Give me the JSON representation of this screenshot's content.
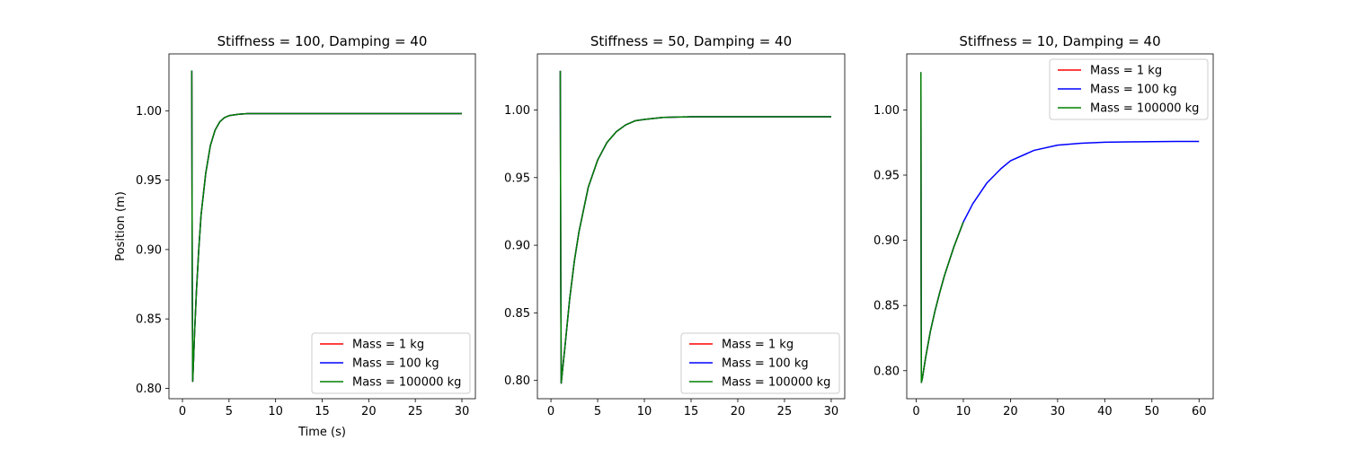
{
  "chart_data": [
    {
      "type": "line",
      "title": "Stiffness = 100, Damping = 40",
      "xlabel": "Time (s)",
      "ylabel": "Position (m)",
      "xlim": [
        -1.45,
        31.45
      ],
      "ylim": [
        0.7925,
        1.041
      ],
      "xticks": [
        0,
        5,
        10,
        15,
        20,
        25,
        30
      ],
      "xtick_labels": [
        "0",
        "5",
        "10",
        "15",
        "20",
        "25",
        "30"
      ],
      "yticks": [
        0.8,
        0.85,
        0.9,
        0.95,
        1.0
      ],
      "ytick_labels": [
        "0.80",
        "0.85",
        "0.90",
        "0.95",
        "1.00"
      ],
      "legend_position": "lower-right",
      "series": [
        {
          "name": "Mass = 1 kg",
          "color": "#ff0000",
          "x": [
            1.0,
            1.05,
            1.1,
            1.2,
            1.3,
            1.5,
            1.75,
            2.0,
            2.5,
            3.0,
            3.5,
            4.0,
            4.5,
            5.0,
            6.0,
            7.0,
            8.0,
            10.0,
            15.0,
            20.0,
            30.0
          ],
          "y": [
            1.029,
            0.88,
            0.805,
            0.822,
            0.84,
            0.87,
            0.9,
            0.925,
            0.955,
            0.975,
            0.986,
            0.992,
            0.995,
            0.9965,
            0.9975,
            0.998,
            0.998,
            0.998,
            0.998,
            0.998,
            0.998
          ]
        },
        {
          "name": "Mass = 100 kg",
          "color": "#0000ff",
          "x": [
            1.0,
            1.05,
            1.1,
            1.2,
            1.3,
            1.5,
            1.75,
            2.0,
            2.5,
            3.0,
            3.5,
            4.0,
            4.5,
            5.0,
            6.0,
            7.0,
            8.0,
            10.0,
            15.0,
            20.0,
            30.0
          ],
          "y": [
            1.029,
            0.88,
            0.805,
            0.822,
            0.84,
            0.87,
            0.9,
            0.925,
            0.955,
            0.975,
            0.986,
            0.992,
            0.995,
            0.9965,
            0.9975,
            0.998,
            0.998,
            0.998,
            0.998,
            0.998,
            0.998
          ]
        },
        {
          "name": "Mass = 100000 kg",
          "color": "#008000",
          "x": [
            1.0,
            1.05,
            1.1,
            1.2,
            1.3,
            1.5,
            1.75,
            2.0,
            2.5,
            3.0,
            3.5,
            4.0,
            4.5,
            5.0,
            6.0,
            7.0,
            8.0,
            10.0,
            15.0,
            20.0,
            30.0
          ],
          "y": [
            1.029,
            0.88,
            0.805,
            0.822,
            0.84,
            0.87,
            0.9,
            0.925,
            0.955,
            0.975,
            0.986,
            0.992,
            0.995,
            0.9965,
            0.9975,
            0.998,
            0.998,
            0.998,
            0.998,
            0.998,
            0.998
          ]
        }
      ]
    },
    {
      "type": "line",
      "title": "Stiffness = 50, Damping = 40",
      "xlabel": "",
      "ylabel": "",
      "xlim": [
        -1.45,
        31.45
      ],
      "ylim": [
        0.7865,
        1.0415
      ],
      "xticks": [
        0,
        5,
        10,
        15,
        20,
        25,
        30
      ],
      "xtick_labels": [
        "0",
        "5",
        "10",
        "15",
        "20",
        "25",
        "30"
      ],
      "yticks": [
        0.8,
        0.85,
        0.9,
        0.95,
        1.0
      ],
      "ytick_labels": [
        "0.80",
        "0.85",
        "0.90",
        "0.95",
        "1.00"
      ],
      "legend_position": "lower-right",
      "series": [
        {
          "name": "Mass = 1 kg",
          "color": "#ff0000",
          "x": [
            1.0,
            1.05,
            1.1,
            1.2,
            1.5,
            2.0,
            2.5,
            3.0,
            4.0,
            5.0,
            6.0,
            7.0,
            8.0,
            9.0,
            10.0,
            12.0,
            15.0,
            20.0,
            25.0,
            30.0
          ],
          "y": [
            1.029,
            0.88,
            0.798,
            0.805,
            0.825,
            0.86,
            0.888,
            0.91,
            0.943,
            0.963,
            0.976,
            0.984,
            0.989,
            0.992,
            0.993,
            0.9945,
            0.995,
            0.995,
            0.995,
            0.995
          ]
        },
        {
          "name": "Mass = 100 kg",
          "color": "#0000ff",
          "x": [
            1.0,
            1.05,
            1.1,
            1.2,
            1.5,
            2.0,
            2.5,
            3.0,
            4.0,
            5.0,
            6.0,
            7.0,
            8.0,
            9.0,
            10.0,
            12.0,
            15.0,
            20.0,
            25.0,
            30.0
          ],
          "y": [
            1.029,
            0.88,
            0.798,
            0.805,
            0.825,
            0.86,
            0.888,
            0.91,
            0.943,
            0.963,
            0.976,
            0.984,
            0.989,
            0.992,
            0.993,
            0.9945,
            0.995,
            0.995,
            0.995,
            0.995
          ]
        },
        {
          "name": "Mass = 100000 kg",
          "color": "#008000",
          "x": [
            1.0,
            1.05,
            1.1,
            1.2,
            1.5,
            2.0,
            2.5,
            3.0,
            4.0,
            5.0,
            6.0,
            7.0,
            8.0,
            9.0,
            10.0,
            12.0,
            15.0,
            20.0,
            25.0,
            30.0
          ],
          "y": [
            1.029,
            0.88,
            0.798,
            0.805,
            0.825,
            0.86,
            0.888,
            0.91,
            0.943,
            0.963,
            0.976,
            0.984,
            0.989,
            0.992,
            0.993,
            0.9945,
            0.995,
            0.995,
            0.995,
            0.995
          ]
        }
      ]
    },
    {
      "type": "line",
      "title": "Stiffness = 10, Damping = 40",
      "xlabel": "",
      "ylabel": "",
      "xlim": [
        -2.0,
        63.0
      ],
      "ylim": [
        0.7785,
        1.043
      ],
      "xticks": [
        0,
        10,
        20,
        30,
        40,
        50,
        60
      ],
      "xtick_labels": [
        "0",
        "10",
        "20",
        "30",
        "40",
        "50",
        "60"
      ],
      "yticks": [
        0.8,
        0.85,
        0.9,
        0.95,
        1.0
      ],
      "ytick_labels": [
        "0.80",
        "0.85",
        "0.90",
        "0.95",
        "1.00"
      ],
      "legend_position": "top-right",
      "series": [
        {
          "name": "Mass = 1 kg",
          "color": "#ff0000",
          "x": [
            1.0,
            1.05,
            1.1,
            1.3,
            2.0,
            3.0,
            4.0,
            5.0,
            6.0,
            8.0,
            10.0
          ],
          "y": [
            1.029,
            0.88,
            0.791,
            0.794,
            0.81,
            0.83,
            0.846,
            0.86,
            0.873,
            0.895,
            0.914
          ]
        },
        {
          "name": "Mass = 100 kg",
          "color": "#0000ff",
          "x": [
            1.0,
            1.05,
            1.1,
            1.3,
            2.0,
            3.0,
            4.0,
            5.0,
            6.0,
            8.0,
            10.0,
            12.0,
            15.0,
            18.0,
            20.0,
            25.0,
            30.0,
            35.0,
            40.0,
            45.0,
            50.0,
            55.0,
            60.0
          ],
          "y": [
            1.029,
            0.88,
            0.791,
            0.794,
            0.81,
            0.83,
            0.846,
            0.86,
            0.873,
            0.895,
            0.914,
            0.928,
            0.944,
            0.955,
            0.961,
            0.969,
            0.973,
            0.9745,
            0.9752,
            0.9755,
            0.9757,
            0.9758,
            0.9758
          ]
        },
        {
          "name": "Mass = 100000 kg",
          "color": "#008000",
          "x": [
            1.0,
            1.05,
            1.1,
            1.3,
            2.0,
            3.0,
            4.0,
            5.0,
            6.0,
            8.0,
            10.0
          ],
          "y": [
            1.029,
            0.88,
            0.791,
            0.794,
            0.81,
            0.83,
            0.846,
            0.86,
            0.873,
            0.895,
            0.914
          ]
        }
      ]
    }
  ]
}
